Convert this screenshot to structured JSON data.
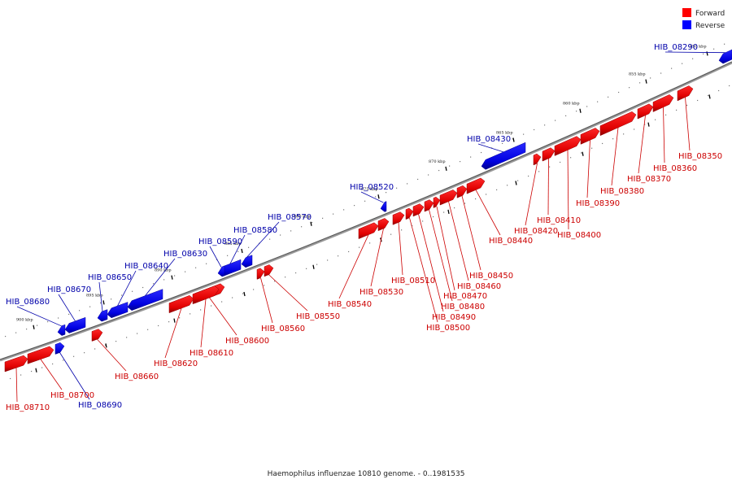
{
  "legend": [
    {
      "label": "Forward",
      "color": "#ff0000"
    },
    {
      "label": "Reverse",
      "color": "#0000ff"
    }
  ],
  "caption": "Haemophilus influenzae 10810 genome. - 0..1981535",
  "colors": {
    "forward": "#ff0000",
    "reverse": "#0000ff",
    "backbone": "#888888",
    "forward_label": "#cc0000",
    "reverse_label": "#0000aa"
  },
  "ticks": [
    {
      "pos": 850,
      "label": "850 kbp"
    },
    {
      "pos": 855,
      "label": "855 kbp"
    },
    {
      "pos": 860,
      "label": "860 kbp"
    },
    {
      "pos": 865,
      "label": "865 kbp"
    },
    {
      "pos": 870,
      "label": "870 kbp"
    },
    {
      "pos": 875,
      "label": "875 kbp"
    },
    {
      "pos": 880,
      "label": "880 kbp"
    },
    {
      "pos": 885,
      "label": "885 kbp"
    },
    {
      "pos": 890,
      "label": "890 kbp"
    },
    {
      "pos": 895,
      "label": "895 kbp"
    },
    {
      "pos": 900,
      "label": "900 kbp"
    }
  ],
  "genes": [
    {
      "id": "HIB_08290",
      "strand": "reverse"
    },
    {
      "id": "HIB_08350",
      "strand": "forward"
    },
    {
      "id": "HIB_08360",
      "strand": "forward"
    },
    {
      "id": "HIB_08370",
      "strand": "forward"
    },
    {
      "id": "HIB_08380",
      "strand": "forward"
    },
    {
      "id": "HIB_08390",
      "strand": "forward"
    },
    {
      "id": "HIB_08400",
      "strand": "forward"
    },
    {
      "id": "HIB_08410",
      "strand": "forward"
    },
    {
      "id": "HIB_08420",
      "strand": "forward"
    },
    {
      "id": "HIB_08430",
      "strand": "reverse"
    },
    {
      "id": "HIB_08440",
      "strand": "forward"
    },
    {
      "id": "HIB_08450",
      "strand": "forward"
    },
    {
      "id": "HIB_08460",
      "strand": "forward"
    },
    {
      "id": "HIB_08470",
      "strand": "forward"
    },
    {
      "id": "HIB_08480",
      "strand": "forward"
    },
    {
      "id": "HIB_08490",
      "strand": "forward"
    },
    {
      "id": "HIB_08500",
      "strand": "forward"
    },
    {
      "id": "HIB_08510",
      "strand": "forward"
    },
    {
      "id": "HIB_08520",
      "strand": "reverse"
    },
    {
      "id": "HIB_08530",
      "strand": "forward"
    },
    {
      "id": "HIB_08540",
      "strand": "forward"
    },
    {
      "id": "HIB_08550",
      "strand": "forward"
    },
    {
      "id": "HIB_08560",
      "strand": "forward"
    },
    {
      "id": "HIB_08570",
      "strand": "reverse"
    },
    {
      "id": "HIB_08580",
      "strand": "reverse"
    },
    {
      "id": "HIB_08590",
      "strand": "reverse"
    },
    {
      "id": "HIB_08600",
      "strand": "forward"
    },
    {
      "id": "HIB_08610",
      "strand": "forward"
    },
    {
      "id": "HIB_08620",
      "strand": "forward"
    },
    {
      "id": "HIB_08630",
      "strand": "reverse"
    },
    {
      "id": "HIB_08640",
      "strand": "reverse"
    },
    {
      "id": "HIB_08650",
      "strand": "reverse"
    },
    {
      "id": "HIB_08660",
      "strand": "forward"
    },
    {
      "id": "HIB_08670",
      "strand": "reverse"
    },
    {
      "id": "HIB_08680",
      "strand": "reverse"
    },
    {
      "id": "HIB_08690",
      "strand": "reverse"
    },
    {
      "id": "HIB_08700",
      "strand": "forward"
    },
    {
      "id": "HIB_08710",
      "strand": "forward"
    }
  ]
}
